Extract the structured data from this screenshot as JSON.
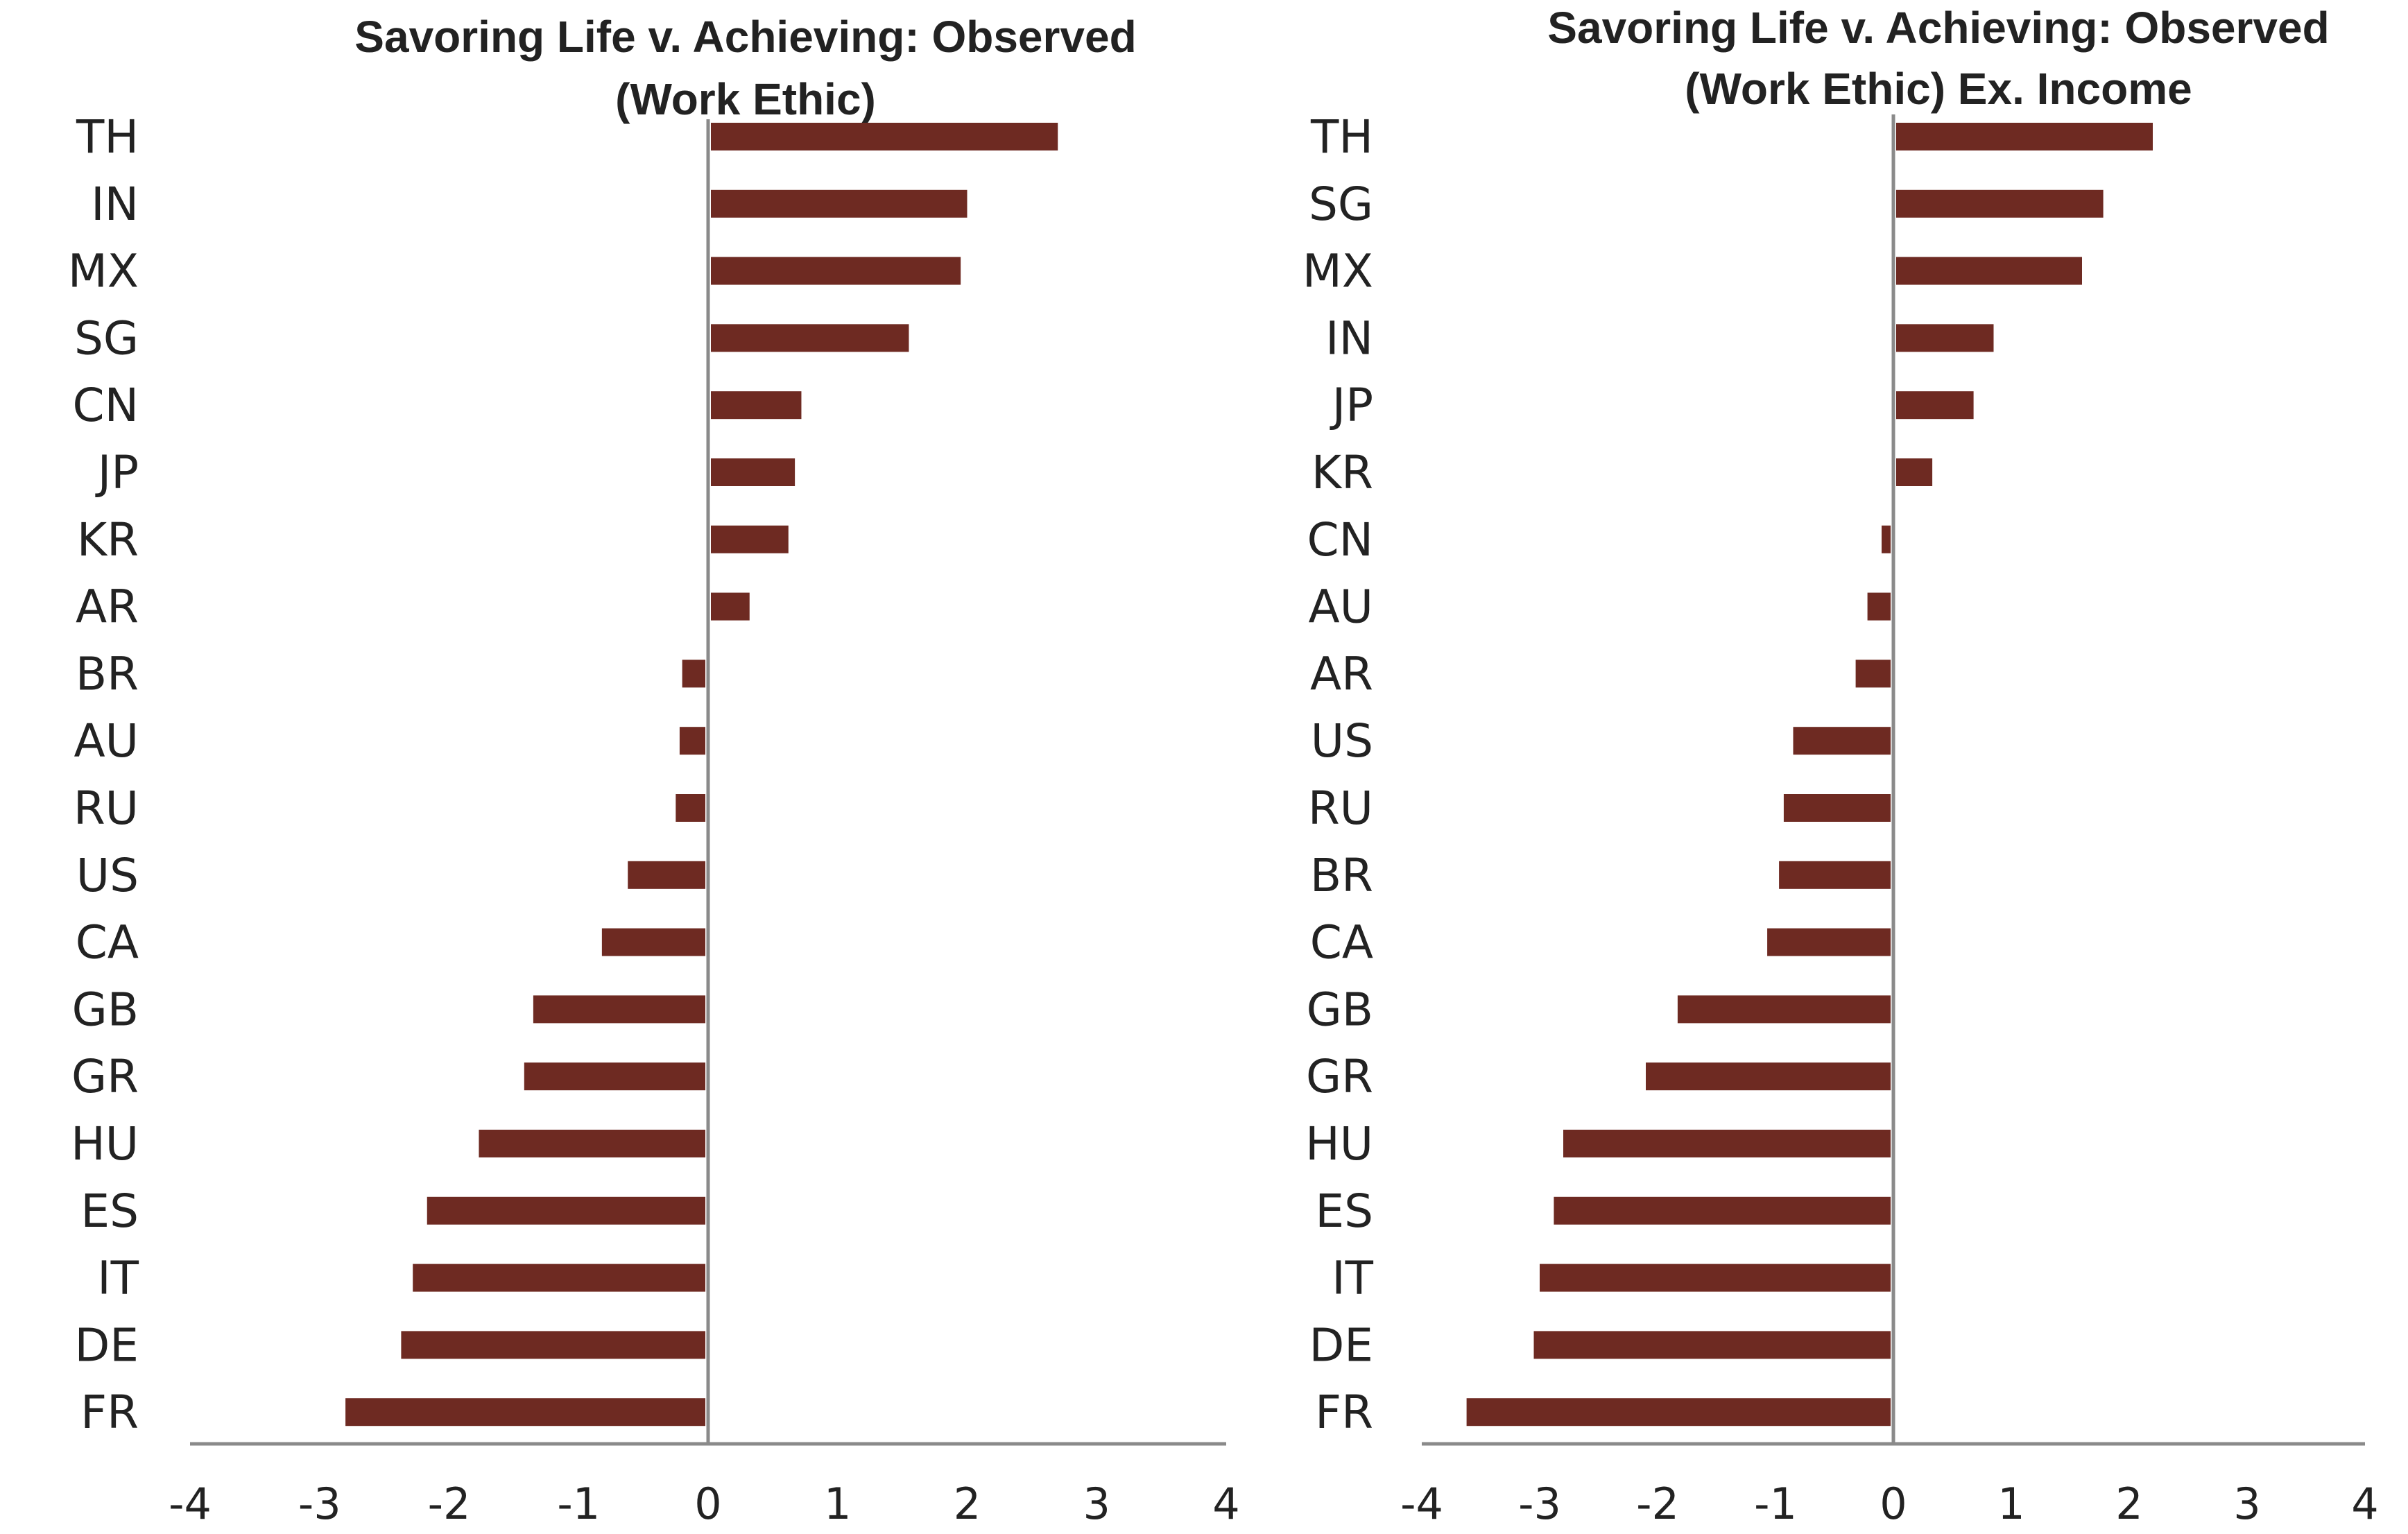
{
  "colors": {
    "bar": "#6e2a22",
    "axis": "#8a8a8a",
    "text": "#222222"
  },
  "chart_data": [
    {
      "type": "bar",
      "orientation": "horizontal",
      "title": [
        "Savoring Life v. Achieving: Observed",
        "(Work Ethic)"
      ],
      "categories": [
        "TH",
        "IN",
        "MX",
        "SG",
        "CN",
        "JP",
        "KR",
        "AR",
        "BR",
        "AU",
        "RU",
        "US",
        "CA",
        "GB",
        "GR",
        "HU",
        "ES",
        "IT",
        "DE",
        "FR"
      ],
      "values": [
        2.7,
        2.0,
        1.95,
        1.55,
        0.72,
        0.67,
        0.62,
        0.32,
        -0.2,
        -0.22,
        -0.25,
        -0.62,
        -0.82,
        -1.35,
        -1.42,
        -1.77,
        -2.17,
        -2.28,
        -2.37,
        -2.8
      ],
      "xlim": [
        -4,
        4
      ],
      "xticks": [
        "-4",
        "-3",
        "-2",
        "-1",
        "0",
        "1",
        "2",
        "3",
        "4"
      ],
      "grid": false
    },
    {
      "type": "bar",
      "orientation": "horizontal",
      "title": [
        "Savoring Life v. Achieving: Observed",
        "(Work Ethic) Ex. Income"
      ],
      "categories": [
        "TH",
        "SG",
        "MX",
        "IN",
        "JP",
        "KR",
        "CN",
        "AU",
        "AR",
        "US",
        "RU",
        "BR",
        "CA",
        "GB",
        "GR",
        "HU",
        "ES",
        "IT",
        "DE",
        "FR"
      ],
      "values": [
        2.2,
        1.78,
        1.6,
        0.85,
        0.68,
        0.33,
        -0.1,
        -0.22,
        -0.32,
        -0.85,
        -0.93,
        -0.97,
        -1.07,
        -1.83,
        -2.1,
        -2.8,
        -2.88,
        -3.0,
        -3.05,
        -3.62
      ],
      "xlim": [
        -4,
        4
      ],
      "xticks": [
        "-4",
        "-3",
        "-2",
        "-1",
        "0",
        "1",
        "2",
        "3",
        "4"
      ],
      "grid": false
    }
  ]
}
